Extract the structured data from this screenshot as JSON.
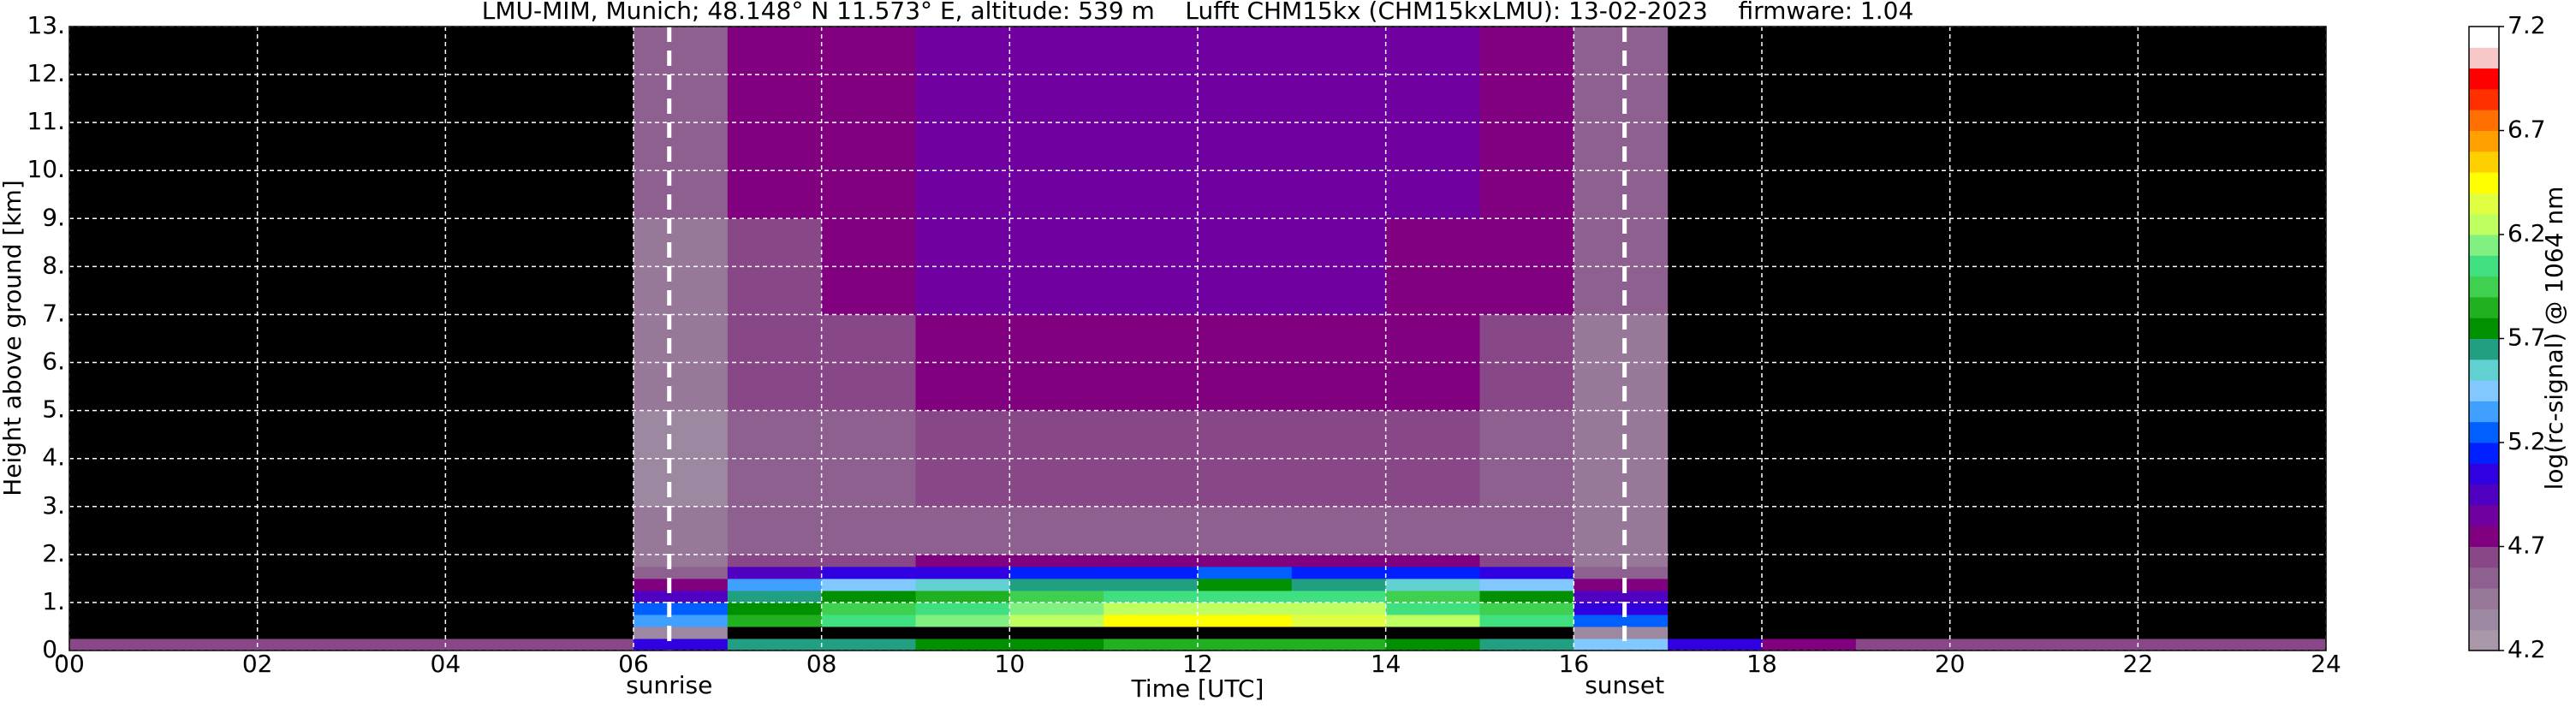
{
  "chart_data": {
    "type": "heatmap",
    "title": "LMU-MIM, Munich; 48.148° N 11.573° E, altitude: 539 m    Lufft CHM15kx (CHM15kxLMU): 13-02-2023    firmware: 1.04",
    "xlabel": "Time [UTC]",
    "ylabel": "Height above ground [km]",
    "colorbar_label": "log(rc-signal) @ 1064 nm",
    "xlim": [
      0,
      24
    ],
    "ylim": [
      0,
      13
    ],
    "xticks": [
      {
        "value": 0,
        "label": "00"
      },
      {
        "value": 2,
        "label": "02"
      },
      {
        "value": 4,
        "label": "04"
      },
      {
        "value": 6,
        "label": "06"
      },
      {
        "value": 8,
        "label": "08"
      },
      10,
      12,
      14,
      16,
      18,
      20,
      22,
      24
    ],
    "yticks": [
      {
        "value": 0,
        "label": "0."
      },
      {
        "value": 1,
        "label": "1."
      },
      {
        "value": 2,
        "label": "2."
      },
      {
        "value": 3,
        "label": "3."
      },
      {
        "value": 4,
        "label": "4."
      },
      {
        "value": 5,
        "label": "5."
      },
      {
        "value": 6,
        "label": "6."
      },
      {
        "value": 7,
        "label": "7."
      },
      {
        "value": 8,
        "label": "8."
      },
      {
        "value": 9,
        "label": "9."
      },
      {
        "value": 10,
        "label": "10."
      },
      {
        "value": 11,
        "label": "11."
      },
      {
        "value": 12,
        "label": "12."
      },
      {
        "value": 13,
        "label": "13."
      }
    ],
    "grid": true,
    "clim": [
      4.2,
      7.2
    ],
    "cticks": [
      4.2,
      4.7,
      5.2,
      5.7,
      6.2,
      6.7,
      7.2
    ],
    "below_color": "#000000",
    "colors": [
      "#a898a8",
      "#9c88a0",
      "#987898",
      "#8e6090",
      "#884888",
      "#800080",
      "#7000a0",
      "#5000c0",
      "#3000e0",
      "#0020ff",
      "#0060ff",
      "#40a0ff",
      "#80c8ff",
      "#60d0d0",
      "#20a080",
      "#009000",
      "#20b020",
      "#40d050",
      "#40e080",
      "#80f080",
      "#c0ff60",
      "#e0ff40",
      "#ffff00",
      "#ffd000",
      "#ffa000",
      "#ff7000",
      "#ff3000",
      "#ff0000",
      "#f8c8c8",
      "#ffffff"
    ],
    "x_bins": [
      0,
      1,
      2,
      3,
      4,
      5,
      6,
      7,
      8,
      9,
      10,
      11,
      12,
      13,
      14,
      15,
      16,
      17,
      18,
      19,
      20,
      21,
      22,
      23,
      24
    ],
    "y_bins": [
      0,
      0.25,
      0.5,
      0.75,
      1,
      1.25,
      1.5,
      1.75,
      2,
      3,
      5,
      7,
      9,
      11,
      13
    ],
    "z": [
      [
        4.6,
        4.1,
        4.1,
        4.1,
        4.1,
        4.1,
        4.1,
        4.1,
        4.1,
        4.1,
        4.1,
        4.1,
        4.1,
        4.1
      ],
      [
        4.6,
        4.1,
        4.1,
        4.1,
        4.1,
        4.1,
        4.1,
        4.1,
        4.1,
        4.1,
        4.1,
        4.1,
        4.1,
        4.1
      ],
      [
        4.6,
        4.1,
        4.1,
        4.1,
        4.1,
        4.1,
        4.1,
        4.1,
        4.1,
        4.1,
        4.1,
        4.1,
        4.1,
        4.1
      ],
      [
        4.6,
        4.1,
        4.1,
        4.1,
        4.1,
        4.1,
        4.1,
        4.1,
        4.1,
        4.1,
        4.1,
        4.1,
        4.1,
        4.1
      ],
      [
        4.6,
        4.1,
        4.1,
        4.1,
        4.1,
        4.1,
        4.1,
        4.1,
        4.1,
        4.1,
        4.1,
        4.1,
        4.1,
        4.1
      ],
      [
        4.6,
        4.1,
        4.1,
        4.1,
        4.1,
        4.1,
        4.1,
        4.1,
        4.1,
        4.1,
        4.1,
        4.1,
        4.1,
        4.1
      ],
      [
        5.0,
        4.3,
        5.3,
        5.2,
        4.9,
        4.7,
        4.5,
        4.4,
        4.4,
        4.3,
        4.4,
        4.4,
        4.5,
        4.5
      ],
      [
        5.6,
        4.1,
        5.8,
        5.7,
        5.6,
        5.3,
        4.9,
        4.6,
        4.5,
        4.5,
        4.6,
        4.6,
        4.7,
        4.7
      ],
      [
        5.6,
        4.1,
        6.0,
        5.9,
        5.7,
        5.4,
        5.0,
        4.6,
        4.5,
        4.5,
        4.6,
        4.7,
        4.7,
        4.7
      ],
      [
        5.7,
        4.1,
        6.1,
        6.0,
        5.8,
        5.5,
        5.0,
        4.7,
        4.5,
        4.6,
        4.7,
        4.8,
        4.8,
        4.8
      ],
      [
        5.7,
        4.1,
        6.2,
        6.1,
        5.9,
        5.6,
        5.1,
        4.7,
        4.5,
        4.6,
        4.7,
        4.8,
        4.8,
        4.8
      ],
      [
        5.8,
        4.1,
        6.4,
        6.2,
        6.0,
        5.6,
        5.1,
        4.7,
        4.5,
        4.6,
        4.7,
        4.8,
        4.8,
        4.8
      ],
      [
        5.8,
        4.1,
        6.4,
        6.2,
        6.0,
        5.7,
        5.2,
        4.7,
        4.5,
        4.6,
        4.7,
        4.8,
        4.8,
        4.8
      ],
      [
        5.8,
        4.1,
        6.3,
        6.2,
        6.0,
        5.6,
        5.1,
        4.7,
        4.5,
        4.6,
        4.7,
        4.8,
        4.8,
        4.8
      ],
      [
        5.7,
        4.1,
        6.2,
        6.0,
        5.9,
        5.5,
        5.1,
        4.7,
        4.5,
        4.6,
        4.7,
        4.7,
        4.8,
        4.8
      ],
      [
        5.6,
        4.1,
        6.0,
        5.9,
        5.7,
        5.4,
        5.0,
        4.6,
        4.5,
        4.5,
        4.6,
        4.7,
        4.7,
        4.7
      ],
      [
        5.4,
        4.3,
        5.2,
        5.0,
        4.9,
        4.7,
        4.5,
        4.4,
        4.4,
        4.4,
        4.4,
        4.5,
        4.5,
        4.5
      ],
      [
        5.0,
        4.1,
        4.1,
        4.1,
        4.1,
        4.1,
        4.1,
        4.1,
        4.1,
        4.1,
        4.1,
        4.1,
        4.1,
        4.1
      ],
      [
        4.7,
        4.1,
        4.1,
        4.1,
        4.1,
        4.1,
        4.1,
        4.1,
        4.1,
        4.1,
        4.1,
        4.1,
        4.1,
        4.1
      ],
      [
        4.6,
        4.1,
        4.1,
        4.1,
        4.1,
        4.1,
        4.1,
        4.1,
        4.1,
        4.1,
        4.1,
        4.1,
        4.1,
        4.1
      ],
      [
        4.6,
        4.1,
        4.1,
        4.1,
        4.1,
        4.1,
        4.1,
        4.1,
        4.1,
        4.1,
        4.1,
        4.1,
        4.1,
        4.1
      ],
      [
        4.6,
        4.1,
        4.1,
        4.1,
        4.1,
        4.1,
        4.1,
        4.1,
        4.1,
        4.1,
        4.1,
        4.1,
        4.1,
        4.1
      ],
      [
        4.6,
        4.1,
        4.1,
        4.1,
        4.1,
        4.1,
        4.1,
        4.1,
        4.1,
        4.1,
        4.1,
        4.1,
        4.1,
        4.1
      ],
      [
        4.6,
        4.1,
        4.1,
        4.1,
        4.1,
        4.1,
        4.1,
        4.1,
        4.1,
        4.1,
        4.1,
        4.1,
        4.1,
        4.1
      ]
    ],
    "annotations": [
      {
        "text": "sunrise",
        "x": 6.38
      },
      {
        "text": "sunset",
        "x": 16.54
      }
    ]
  }
}
